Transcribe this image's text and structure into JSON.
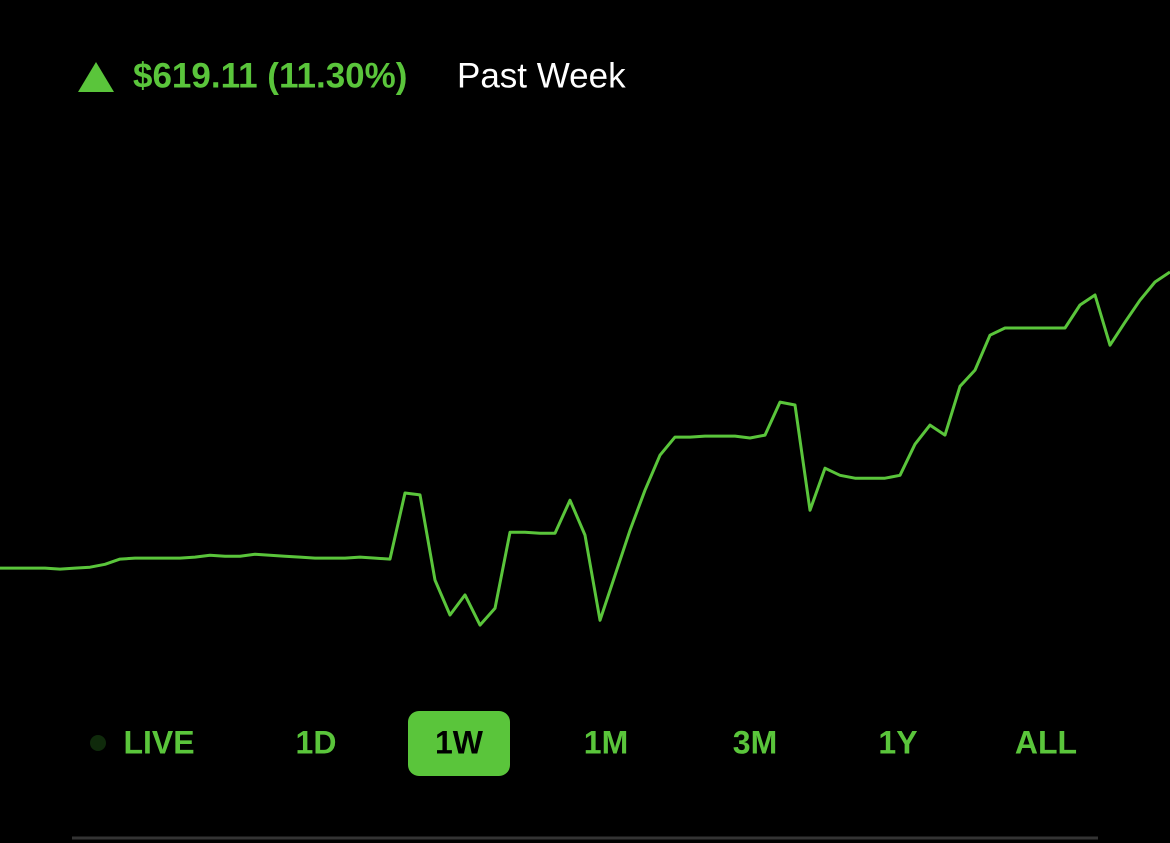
{
  "header": {
    "change": "$619.11 (11.30%)",
    "period": "Past Week"
  },
  "chart_data": {
    "type": "line",
    "color": "#5ac53b",
    "ylim": [
      -192,
      874
    ],
    "values": [
      0,
      0,
      0,
      0,
      -2,
      0,
      2,
      8,
      19,
      21,
      21,
      21,
      21,
      23,
      27,
      25,
      25,
      29,
      27,
      25,
      23,
      21,
      21,
      21,
      23,
      21,
      19,
      157,
      153,
      -25,
      -98,
      -56,
      -119,
      -84,
      75,
      75,
      73,
      73,
      142,
      69,
      -109,
      -15,
      79,
      163,
      236,
      274,
      274,
      276,
      276,
      276,
      272,
      278,
      347,
      341,
      121,
      209,
      194,
      188,
      188,
      188,
      194,
      259,
      299,
      278,
      380,
      414,
      487,
      502,
      502,
      502,
      502,
      502,
      550,
      571,
      466,
      514,
      560,
      598,
      619
    ]
  },
  "ranges": {
    "options": [
      "LIVE",
      "1D",
      "1W",
      "1M",
      "3M",
      "1Y",
      "ALL"
    ],
    "selected_index": 2
  }
}
